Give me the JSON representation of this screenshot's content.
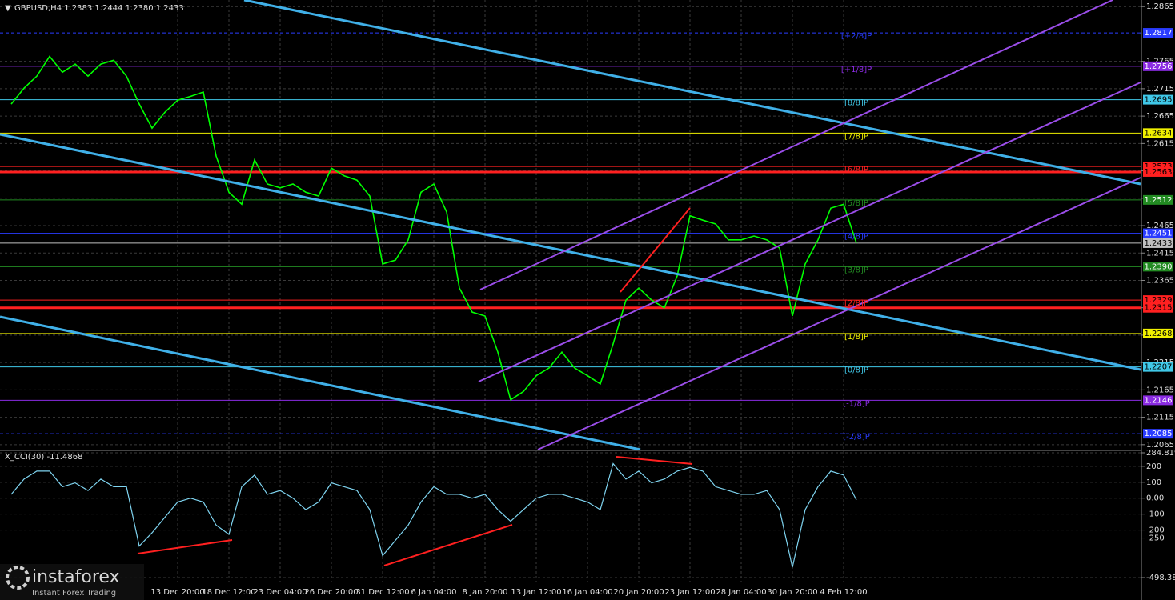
{
  "chart_data": [
    {
      "type": "line",
      "title": "GBPUSD,H4  1.2383 1.2444 1.2380 1.2433",
      "categories": [
        null,
        null,
        null,
        null,
        null,
        null,
        null,
        null,
        null,
        null,
        null,
        null,
        null,
        "13 Dec 20:00",
        null,
        null,
        null,
        "18 Dec 12:00",
        null,
        null,
        null,
        "23 Dec 04:00",
        null,
        null,
        null,
        "26 Dec 20:00",
        null,
        null,
        null,
        "31 Dec 12:00",
        null,
        null,
        null,
        "6 Jan 04:00",
        null,
        null,
        null,
        "8 Jan 20:00",
        null,
        null,
        null,
        "13 Jan 12:00",
        null,
        null,
        null,
        "16 Jan 04:00",
        null,
        null,
        null,
        "20 Jan 20:00",
        null,
        null,
        null,
        "23 Jan 12:00",
        null,
        null,
        null,
        "28 Jan 04:00",
        null,
        null,
        null,
        "30 Jan 20:00",
        null,
        null,
        null,
        "4 Feb 12:00",
        null
      ],
      "values": [
        1.2687,
        1.2716,
        1.2738,
        1.2774,
        1.2745,
        1.276,
        1.2738,
        1.276,
        1.2767,
        1.2738,
        1.2687,
        1.2643,
        1.2672,
        1.2694,
        1.2701,
        1.2709,
        1.2592,
        1.2526,
        1.2504,
        1.2585,
        1.2541,
        1.2534,
        1.2541,
        1.2526,
        1.2519,
        1.257,
        1.2556,
        1.2548,
        1.2519,
        1.2395,
        1.2402,
        1.2439,
        1.2526,
        1.2541,
        1.249,
        1.2351,
        1.2307,
        1.23,
        1.2234,
        1.2147,
        1.2162,
        1.2191,
        1.2205,
        1.2234,
        1.2205,
        1.2191,
        1.2176,
        1.2249,
        1.2329,
        1.2351,
        1.2329,
        1.2315,
        1.2373,
        1.2483,
        1.2475,
        1.2468,
        1.2439,
        1.2439,
        1.2446,
        1.2439,
        1.2424,
        1.23,
        1.2395,
        1.2439,
        1.2497,
        1.2504,
        1.2433
      ],
      "color": "#00ff00",
      "ylim": [
        1.2056,
        1.2877
      ],
      "yticks": [
        1.2865,
        1.2815,
        1.2765,
        1.2715,
        1.2665,
        1.2615,
        1.2565,
        1.2515,
        1.2465,
        1.2415,
        1.2365,
        1.2315,
        1.2265,
        1.2215,
        1.2165,
        1.2115,
        1.2065
      ],
      "grid": true,
      "levels": [
        {
          "value": 1.2817,
          "price_label": "1.2817",
          "label": "[+2/8]P",
          "color": "#2a3cff"
        },
        {
          "value": 1.2756,
          "price_label": "1.2756",
          "label": "[+1/8]P",
          "color": "#8a2be2"
        },
        {
          "value": 1.2695,
          "price_label": "1.2695",
          "label": "[8/8]P",
          "color": "#40c8e8"
        },
        {
          "value": 1.2634,
          "price_label": "1.2634",
          "label": "[7/8]P",
          "color": "#f0f000"
        },
        {
          "value": 1.2573,
          "price_label": "1.2573",
          "label": "[6/8]P",
          "color": "#ff2020"
        },
        {
          "value": 1.2563,
          "price_label": "1.2563",
          "color": "#ff2020"
        },
        {
          "value": 1.2512,
          "price_label": "1.2512",
          "label": "[5/8]P",
          "color": "#228b22"
        },
        {
          "value": 1.2451,
          "price_label": "1.2451",
          "label": "[4/8]P",
          "color": "#2a3cff"
        },
        {
          "value": 1.2433,
          "price_label": "1.2433",
          "color": "#c0c0c0"
        },
        {
          "value": 1.239,
          "price_label": "1.2390",
          "label": "[3/8]P",
          "color": "#228b22"
        },
        {
          "value": 1.2329,
          "price_label": "1.2329",
          "label": "[2/8]P",
          "color": "#ff2020"
        },
        {
          "value": 1.2315,
          "price_label": "1.2315",
          "color": "#ff2020"
        },
        {
          "value": 1.2268,
          "price_label": "1.2268",
          "label": "[1/8]P",
          "color": "#f0f000"
        },
        {
          "value": 1.2207,
          "price_label": "1.2207",
          "label": "[0/8]P",
          "color": "#40c8e8"
        },
        {
          "value": 1.2146,
          "price_label": "1.2146",
          "label": "[-1/8]P",
          "color": "#8a2be2"
        },
        {
          "value": 1.2085,
          "price_label": "1.2085",
          "label": "[-2/8]P",
          "color": "#2a3cff"
        }
      ]
    },
    {
      "type": "line",
      "title": "X_CCI(30) -11.4868",
      "values": [
        24,
        120,
        170,
        170,
        72,
        96,
        48,
        120,
        72,
        72,
        -300,
        -217,
        -120,
        -24,
        0,
        -24,
        -169,
        -227,
        72,
        145,
        24,
        48,
        0,
        -72,
        -24,
        96,
        72,
        48,
        -72,
        -361,
        -265,
        -169,
        -24,
        72,
        24,
        24,
        0,
        24,
        -72,
        -145,
        -72,
        0,
        24,
        24,
        0,
        -24,
        -72,
        217,
        120,
        170,
        96,
        120,
        170,
        193,
        170,
        72,
        48,
        24,
        24,
        48,
        -72,
        -434,
        -72,
        72,
        170,
        145,
        -11.4868
      ],
      "color": "#7fd4f0",
      "ylim": [
        -498.385,
        284.8197
      ],
      "yticks": [
        284.8197,
        200,
        100,
        {
          "value": 0,
          "label": "0.00"
        },
        -100,
        -200,
        -250,
        -498.385
      ],
      "grid": true
    }
  ],
  "watermark": {
    "brand": "instaforex",
    "tagline": "Instant Forex Trading"
  }
}
